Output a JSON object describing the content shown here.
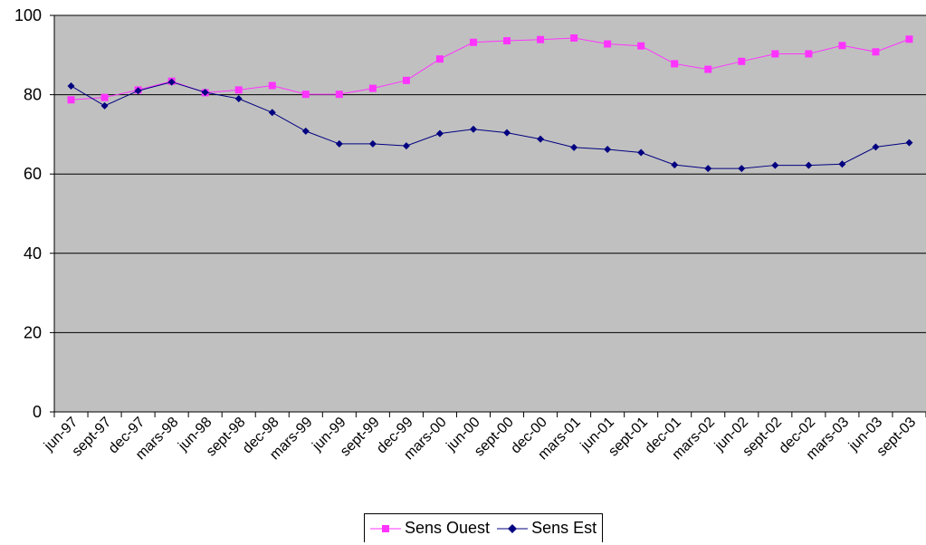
{
  "chart_data": {
    "type": "line",
    "x_tick_labels": [
      "jun-97",
      "sept-97",
      "dec-97",
      "mars-98",
      "jun-98",
      "sept-98",
      "dec-98",
      "mars-99",
      "jun-99",
      "sept-99",
      "dec-99",
      "mars-00",
      "jun-00",
      "sept-00",
      "dec-00",
      "mars-01",
      "jun-01",
      "sept-01",
      "dec-01",
      "mars-02",
      "jun-02",
      "sept-02",
      "dec-02",
      "mars-03",
      "jun-03",
      "sept-03"
    ],
    "y_tick_labels": [
      "0",
      "20",
      "40",
      "60",
      "80",
      "100"
    ],
    "ylim": [
      0,
      100
    ],
    "y_ticks": [
      0,
      20,
      40,
      60,
      80,
      100
    ],
    "grid": "horizontal",
    "legend_position": "bottom-center",
    "background_color": "#c0c0c0",
    "series": [
      {
        "name": "Sens Ouest",
        "color": "#ff33ff",
        "marker": "square",
        "values": [
          78.7,
          79.3,
          81.2,
          83.4,
          80.5,
          81.2,
          82.3,
          80.1,
          80.1,
          81.6,
          83.6,
          89.0,
          93.2,
          93.6,
          93.9,
          94.3,
          92.8,
          92.3,
          87.8,
          86.4,
          88.4,
          90.3,
          90.3,
          92.4,
          90.8,
          94.0
        ]
      },
      {
        "name": "Sens Est",
        "color": "#000080",
        "marker": "diamond",
        "values": [
          82.2,
          77.2,
          81.0,
          83.2,
          80.6,
          79.0,
          75.5,
          70.8,
          67.6,
          67.6,
          67.1,
          70.2,
          71.3,
          70.4,
          68.8,
          66.7,
          66.2,
          65.4,
          62.3,
          61.4,
          61.4,
          62.2,
          62.2,
          62.5,
          66.8,
          67.9
        ]
      }
    ]
  }
}
